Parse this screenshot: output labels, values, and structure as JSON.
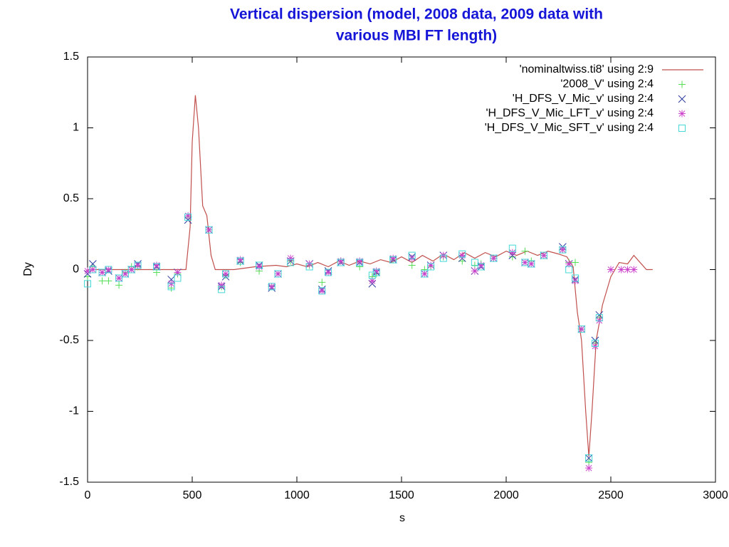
{
  "chart_data": {
    "type": "scatter",
    "title": [
      "Vertical dispersion (model, 2008 data, 2009 data with",
      "various MBI FT length)"
    ],
    "xlabel": "s",
    "ylabel": "Dy",
    "xlim": [
      0,
      3000
    ],
    "ylim": [
      -1.5,
      1.5
    ],
    "xticks": [
      0,
      500,
      1000,
      1500,
      2000,
      2500,
      3000
    ],
    "yticks": [
      -1.5,
      -1,
      -0.5,
      0,
      0.5,
      1,
      1.5
    ],
    "legend": "top-right",
    "x": [
      0,
      25,
      70,
      100,
      150,
      180,
      210,
      240,
      330,
      400,
      430,
      480,
      580,
      640,
      660,
      730,
      820,
      880,
      910,
      970,
      1060,
      1120,
      1150,
      1210,
      1300,
      1360,
      1380,
      1460,
      1550,
      1610,
      1640,
      1700,
      1790,
      1850,
      1880,
      1940,
      2030,
      2090,
      2120,
      2180,
      2270,
      2300,
      2330,
      2360,
      2395,
      2425,
      2445,
      2500,
      2550,
      2580,
      2610
    ],
    "series": [
      {
        "name": "'nominaltwiss.ti8' using 2:9",
        "color": "#c0504d",
        "marker": "line",
        "x": [
          0,
          100,
          200,
          300,
          400,
          470,
          490,
          500,
          515,
          530,
          550,
          570,
          590,
          610,
          700,
          800,
          900,
          950,
          1000,
          1050,
          1100,
          1150,
          1200,
          1250,
          1300,
          1350,
          1400,
          1450,
          1500,
          1550,
          1600,
          1650,
          1700,
          1750,
          1800,
          1850,
          1900,
          1950,
          2000,
          2050,
          2100,
          2150,
          2200,
          2250,
          2290,
          2320,
          2340,
          2360,
          2380,
          2395,
          2410,
          2430,
          2460,
          2500,
          2540,
          2580,
          2610,
          2640,
          2670,
          2700
        ],
        "values": [
          0,
          0,
          0,
          0,
          0,
          0,
          0.3,
          0.9,
          1.23,
          1.0,
          0.45,
          0.38,
          0.1,
          0,
          0,
          0.02,
          0.03,
          0.02,
          0.04,
          0.02,
          0.05,
          0.02,
          0.06,
          0.03,
          0.06,
          0.04,
          0.07,
          0.05,
          0.09,
          0.05,
          0.1,
          0.06,
          0.11,
          0.07,
          0.12,
          0.08,
          0.12,
          0.09,
          0.13,
          0.1,
          0.13,
          0.1,
          0.13,
          0.11,
          0.09,
          0.02,
          -0.3,
          -0.5,
          -1.0,
          -1.32,
          -1.0,
          -0.5,
          -0.25,
          -0.05,
          0.05,
          0.04,
          0.1,
          0.05,
          0,
          0
        ]
      },
      {
        "name": "'2008_V' using 2:4",
        "color": "#55dd55",
        "marker": "plus",
        "values": [
          -0.05,
          0.02,
          -0.08,
          -0.08,
          -0.11,
          -0.02,
          0.02,
          0.02,
          -0.02,
          -0.13,
          -0.03,
          0.37,
          0.28,
          -0.12,
          -0.04,
          0.05,
          -0.01,
          -0.12,
          -0.03,
          0.06,
          0.03,
          -0.09,
          -0.02,
          0.06,
          0.02,
          -0.05,
          -0.03,
          0.07,
          0.03,
          0.0,
          0.02,
          0.09,
          0.06,
          0.03,
          0.04,
          0.08,
          0.09,
          0.13,
          0.06,
          0.1,
          0.14,
          0.05,
          0.05,
          -0.42,
          -1.36,
          -0.52,
          -0.34,
          null,
          null,
          null,
          null
        ]
      },
      {
        "name": "'H_DFS_V_Mic_v' using 2:4",
        "color": "#2a3aa0",
        "marker": "cross",
        "values": [
          -0.03,
          0.04,
          -0.02,
          -0.01,
          -0.06,
          -0.03,
          0.0,
          0.04,
          0.02,
          -0.07,
          -0.02,
          0.35,
          0.28,
          -0.12,
          -0.05,
          0.06,
          0.03,
          -0.13,
          -0.03,
          0.06,
          0.04,
          -0.14,
          -0.01,
          0.05,
          0.05,
          -0.1,
          -0.02,
          0.07,
          0.09,
          -0.03,
          0.03,
          0.1,
          0.08,
          -0.01,
          0.02,
          0.08,
          0.1,
          0.05,
          0.04,
          0.1,
          0.16,
          0.04,
          -0.07,
          -0.42,
          -1.33,
          -0.5,
          -0.32,
          null,
          null,
          null,
          null
        ]
      },
      {
        "name": "'H_DFS_V_Mic_LFT_v' using 2:4",
        "color": "#cc44cc",
        "marker": "star",
        "values": [
          -0.01,
          0.0,
          -0.02,
          0.0,
          -0.06,
          -0.03,
          0.0,
          0.03,
          0.03,
          -0.1,
          -0.02,
          0.38,
          0.28,
          -0.11,
          -0.03,
          0.07,
          0.02,
          -0.12,
          -0.03,
          0.08,
          0.04,
          -0.15,
          -0.02,
          0.06,
          0.06,
          -0.08,
          -0.01,
          0.08,
          0.08,
          -0.03,
          0.03,
          0.1,
          0.1,
          -0.01,
          0.03,
          0.08,
          0.12,
          0.05,
          0.04,
          0.1,
          0.14,
          0.04,
          -0.08,
          -0.42,
          -1.4,
          -0.54,
          -0.36,
          0.0,
          0.0,
          0.0,
          0.0
        ]
      },
      {
        "name": "'H_DFS_V_Mic_SFT_v' using 2:4",
        "color": "#44d8d8",
        "marker": "square",
        "values": [
          -0.1,
          0.0,
          -0.02,
          0.0,
          -0.06,
          -0.03,
          0.0,
          0.03,
          0.02,
          -0.12,
          -0.06,
          0.37,
          0.28,
          -0.14,
          -0.03,
          0.06,
          0.03,
          -0.12,
          -0.03,
          0.05,
          0.02,
          -0.15,
          -0.02,
          0.05,
          0.05,
          -0.04,
          -0.02,
          0.07,
          0.1,
          -0.03,
          0.02,
          0.08,
          0.11,
          0.05,
          0.02,
          0.08,
          0.15,
          0.05,
          0.04,
          0.1,
          0.14,
          0.0,
          -0.06,
          -0.42,
          -1.33,
          -0.52,
          -0.34,
          null,
          null,
          null,
          null
        ]
      }
    ]
  }
}
